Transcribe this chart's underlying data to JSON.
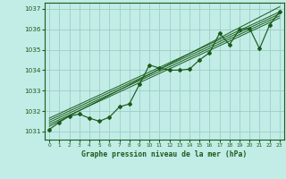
{
  "title": "Graphe pression niveau de la mer (hPa)",
  "bg_color": "#c2ece6",
  "grid_color": "#9ecdc7",
  "line_color": "#1a5c1a",
  "xlim": [
    -0.5,
    23.5
  ],
  "ylim": [
    1030.6,
    1037.3
  ],
  "yticks": [
    1031,
    1032,
    1033,
    1034,
    1035,
    1036,
    1037
  ],
  "xticks": [
    0,
    1,
    2,
    3,
    4,
    5,
    6,
    7,
    8,
    9,
    10,
    11,
    12,
    13,
    14,
    15,
    16,
    17,
    18,
    19,
    20,
    21,
    22,
    23
  ],
  "main_data_x": [
    0,
    1,
    2,
    3,
    4,
    5,
    6,
    7,
    8,
    9,
    10,
    11,
    12,
    13,
    14,
    15,
    16,
    17,
    18,
    19,
    20,
    21,
    22,
    23
  ],
  "main_data_y": [
    1031.1,
    1031.45,
    1031.75,
    1031.85,
    1031.65,
    1031.5,
    1031.7,
    1032.2,
    1032.35,
    1033.3,
    1034.25,
    1034.1,
    1034.0,
    1034.0,
    1034.05,
    1034.5,
    1034.85,
    1035.8,
    1035.25,
    1036.0,
    1036.05,
    1035.05,
    1036.2,
    1036.85
  ],
  "trend_lines": [
    {
      "x0": 0,
      "y0": 1031.55,
      "x1": 23,
      "y1": 1036.75
    },
    {
      "x0": 0,
      "y0": 1031.45,
      "x1": 23,
      "y1": 1036.65
    },
    {
      "x0": 0,
      "y0": 1031.35,
      "x1": 23,
      "y1": 1036.55
    },
    {
      "x0": 0,
      "y0": 1031.65,
      "x1": 23,
      "y1": 1036.85
    },
    {
      "x0": 0,
      "y0": 1031.25,
      "x1": 23,
      "y1": 1037.1
    }
  ]
}
